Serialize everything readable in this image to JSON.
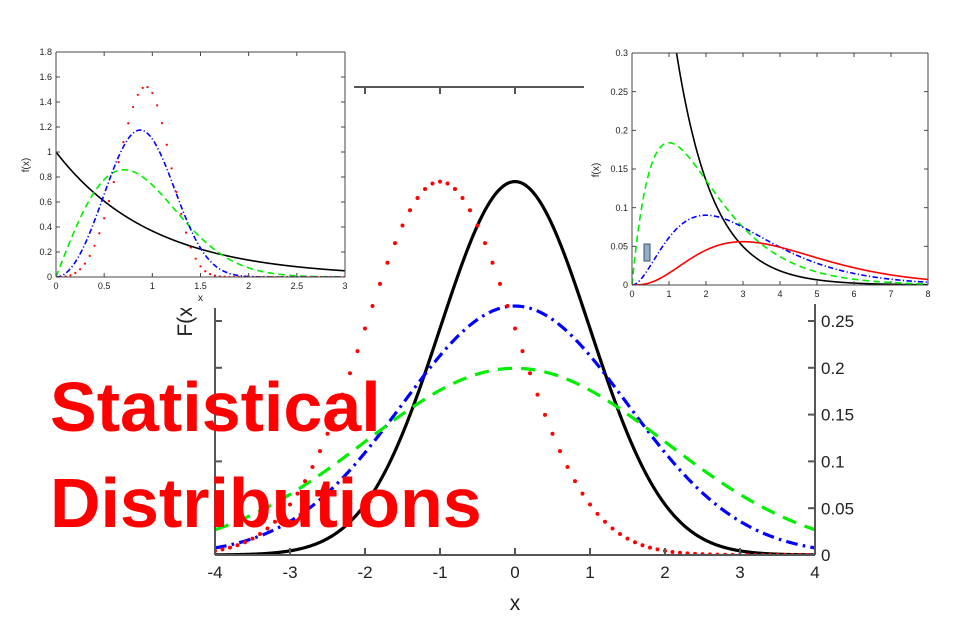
{
  "title_lines": [
    "Statistical",
    "Distributions"
  ],
  "chart_data": [
    {
      "id": "main",
      "type": "line",
      "xlabel": "x",
      "ylabel": "F(x)",
      "xlim": [
        -4,
        4
      ],
      "ylim": [
        0,
        0.5
      ],
      "xticks": [
        "-4",
        "-3",
        "-2",
        "-1",
        "0",
        "1",
        "2",
        "3",
        "4"
      ],
      "yticks": [
        "0",
        "0.05",
        "0.1",
        "0.15",
        "0.2",
        "0.25"
      ],
      "grid": false,
      "series": [
        {
          "distribution": "normal",
          "mean": 0,
          "sd": 1,
          "peak": 0.4,
          "color": "#000000",
          "style": "solid"
        },
        {
          "distribution": "normal",
          "mean": 0,
          "sd": 1.5,
          "peak": 0.265,
          "color": "#0000ff",
          "style": "dashdot"
        },
        {
          "distribution": "normal",
          "mean": 0,
          "sd": 2,
          "peak": 0.2,
          "color": "#00ee00",
          "style": "dashed"
        },
        {
          "distribution": "normal",
          "mean": -1,
          "sd": 1,
          "peak": 0.4,
          "color": "#ff0000",
          "style": "dotted"
        }
      ]
    },
    {
      "id": "weibull",
      "type": "line",
      "xlabel": "x",
      "ylabel": "f(x)",
      "xlim": [
        0,
        3
      ],
      "ylim": [
        0,
        1.8
      ],
      "xticks": [
        "0",
        "0.5",
        "1",
        "1.5",
        "2",
        "2.5",
        "3"
      ],
      "yticks": [
        "0",
        "0.2",
        "0.4",
        "0.6",
        "0.8",
        "1",
        "1.2",
        "1.4",
        "1.6",
        "1.8"
      ],
      "grid": false,
      "series": [
        {
          "distribution": "weibull",
          "scale": 1,
          "shape": 1,
          "peak": 1.0,
          "color": "#000000",
          "style": "solid"
        },
        {
          "distribution": "weibull",
          "scale": 1,
          "shape": 2,
          "peak": 0.86,
          "color": "#00ee00",
          "style": "dashed"
        },
        {
          "distribution": "weibull",
          "scale": 1,
          "shape": 3,
          "peak": 1.18,
          "color": "#0000ff",
          "style": "dashdot"
        },
        {
          "distribution": "weibull",
          "scale": 1,
          "shape": 4,
          "peak": 1.52,
          "color": "#ff0000",
          "style": "dotted"
        }
      ]
    },
    {
      "id": "gamma",
      "type": "line",
      "xlabel": "",
      "ylabel": "f(x)",
      "xlim": [
        0,
        8
      ],
      "ylim": [
        0,
        0.3
      ],
      "xticks": [
        "0",
        "1",
        "2",
        "3",
        "4",
        "5",
        "6",
        "7",
        "8"
      ],
      "yticks": [
        "0",
        "0.05",
        "0.1",
        "0.15",
        "0.2",
        "0.25",
        "0.3"
      ],
      "grid": false,
      "series": [
        {
          "k": 0,
          "peak_x": 0,
          "color": "#000000",
          "style": "solid"
        },
        {
          "k": 1,
          "peak_x": 1,
          "peak": 0.184,
          "color": "#00ee00",
          "style": "dashed"
        },
        {
          "k": 2,
          "peak_x": 2,
          "peak": 0.09,
          "color": "#0000ff",
          "style": "dashdot"
        },
        {
          "k": 3,
          "peak_x": 3,
          "peak": 0.056,
          "color": "#ff0000",
          "style": "solid"
        }
      ]
    }
  ]
}
